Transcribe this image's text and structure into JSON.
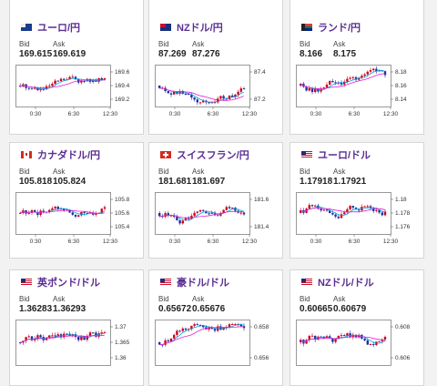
{
  "cards": [
    {
      "pair": "ユーロ/円",
      "flag": "eu",
      "bid": "169.615",
      "ask": "169.619",
      "yticks": [
        "169.6",
        "169.4",
        "169.2"
      ],
      "xticks": [
        "0:30",
        "6:30",
        "12:30"
      ]
    },
    {
      "pair": "NZドル/円",
      "flag": "nz",
      "bid": "87.269",
      "ask": "87.276",
      "yticks": [
        "87.4",
        "87.2"
      ],
      "xticks": [
        "0:30",
        "6:30",
        "12:30"
      ]
    },
    {
      "pair": "ランド/円",
      "flag": "za",
      "bid": "8.166",
      "ask": "8.175",
      "yticks": [
        "8.18",
        "8.16",
        "8.14"
      ],
      "xticks": [
        "0:30",
        "6:30",
        "12:30"
      ]
    },
    {
      "pair": "カナダドル/円",
      "flag": "ca",
      "bid": "105.818",
      "ask": "105.824",
      "yticks": [
        "105.8",
        "105.6",
        "105.4"
      ],
      "xticks": [
        "0:30",
        "6:30",
        "12:30"
      ]
    },
    {
      "pair": "スイスフラン/円",
      "flag": "ch",
      "bid": "181.681",
      "ask": "181.697",
      "yticks": [
        "181.6",
        "181.4"
      ],
      "xticks": [
        "0:30",
        "6:30",
        "12:30"
      ]
    },
    {
      "pair": "ユーロ/ドル",
      "flag": "us",
      "bid": "1.17918",
      "ask": "1.17921",
      "yticks": [
        "1.18",
        "1.178",
        "1.176"
      ],
      "xticks": [
        "0:30",
        "6:30",
        "12:30"
      ]
    },
    {
      "pair": "英ポンド/ドル",
      "flag": "us",
      "bid": "1.36283",
      "ask": "1.36293",
      "yticks": [
        "1.37",
        "1.365",
        "1.36"
      ],
      "xticks": []
    },
    {
      "pair": "豪ドル/ドル",
      "flag": "us",
      "bid": "0.65672",
      "ask": "0.65676",
      "yticks": [
        "0.658",
        "0.656"
      ],
      "xticks": []
    },
    {
      "pair": "NZドル/ドル",
      "flag": "us",
      "bid": "0.60665",
      "ask": "0.60679",
      "yticks": [
        "0.608",
        "0.606"
      ],
      "xticks": []
    }
  ],
  "labels": {
    "bid": "Bid",
    "ask": "Ask"
  },
  "colors": {
    "title": "#5a2d91",
    "up": "#d0021b",
    "down": "#1f2f9e",
    "ma_short": "#00a0e0",
    "ma_long": "#e020d0"
  }
}
